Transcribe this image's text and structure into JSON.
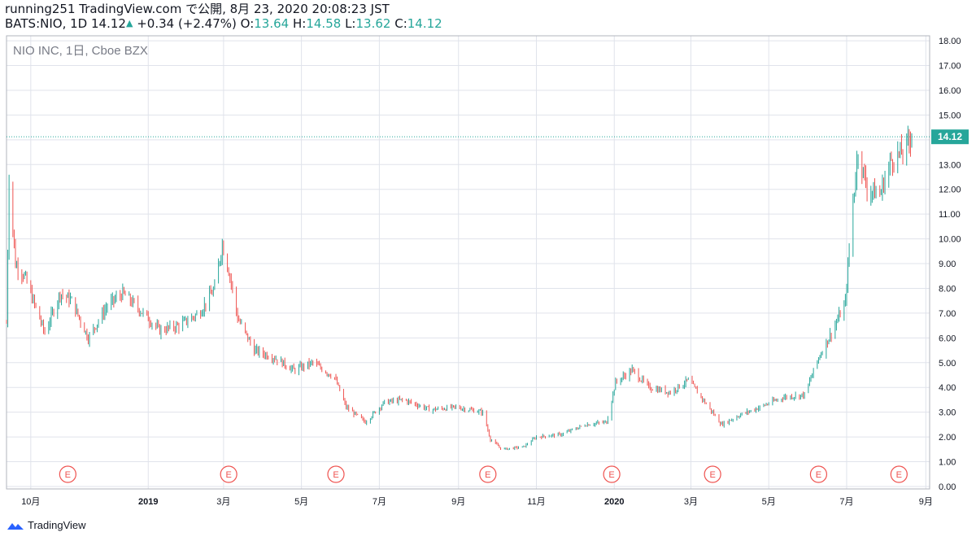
{
  "header": {
    "published": "running251 TradingView.com で公開, 8月 23, 2020 20:08:23 JST",
    "symbol": "BATS:NIO, 1D",
    "last": "14.12",
    "change": "+0.34 (+2.47%)",
    "o_label": "O:",
    "o_value": "13.64",
    "h_label": "H:",
    "h_value": "14.58",
    "l_label": "L:",
    "l_value": "13.62",
    "c_label": "C:",
    "c_value": "14.12"
  },
  "footer": {
    "brand": "TradingView"
  },
  "colors": {
    "up": "#26a69a",
    "down": "#ef5350",
    "grid": "#e0e3eb",
    "price_line": "#26a69a",
    "earnings": "#ef5350"
  },
  "chart_data": {
    "type": "candlestick",
    "title": "NIO INC, 1日, Cboe BZX",
    "ylim": [
      -0.1,
      18.2
    ],
    "y_ticks": [
      "0.00",
      "1.00",
      "2.00",
      "3.00",
      "4.00",
      "5.00",
      "6.00",
      "7.00",
      "8.00",
      "9.00",
      "10.00",
      "11.00",
      "12.00",
      "13.00",
      "14.00",
      "15.00",
      "16.00",
      "17.00",
      "18.00"
    ],
    "x_range": [
      "2018-09-12",
      "2020-09-04"
    ],
    "x_ticks": [
      {
        "date": "2018-10-01",
        "label": "10月",
        "bold": false
      },
      {
        "date": "2019-01-01",
        "label": "2019",
        "bold": true
      },
      {
        "date": "2019-03-01",
        "label": "3月",
        "bold": false
      },
      {
        "date": "2019-05-01",
        "label": "5月",
        "bold": false
      },
      {
        "date": "2019-07-01",
        "label": "7月",
        "bold": false
      },
      {
        "date": "2019-09-01",
        "label": "9月",
        "bold": false
      },
      {
        "date": "2019-11-01",
        "label": "11月",
        "bold": false
      },
      {
        "date": "2020-01-01",
        "label": "2020",
        "bold": true
      },
      {
        "date": "2020-03-01",
        "label": "3月",
        "bold": false
      },
      {
        "date": "2020-05-01",
        "label": "5月",
        "bold": false
      },
      {
        "date": "2020-07-01",
        "label": "7月",
        "bold": false
      },
      {
        "date": "2020-09-01",
        "label": "9月",
        "bold": false
      }
    ],
    "last_price": 14.12,
    "last_price_label": "14.12",
    "earnings_label": "E",
    "earnings_dates": [
      "2018-10-30",
      "2019-03-05",
      "2019-05-28",
      "2019-09-24",
      "2019-12-30",
      "2020-03-18",
      "2020-06-09",
      "2020-08-11"
    ],
    "closes_monthly": [
      {
        "date": "2018-09-12",
        "close": 6.6
      },
      {
        "date": "2018-09-14",
        "close": 12.5
      },
      {
        "date": "2018-09-19",
        "close": 9.0
      },
      {
        "date": "2018-09-26",
        "close": 8.5
      },
      {
        "date": "2018-10-05",
        "close": 7.2
      },
      {
        "date": "2018-10-12",
        "close": 6.2
      },
      {
        "date": "2018-10-24",
        "close": 7.8
      },
      {
        "date": "2018-11-02",
        "close": 7.5
      },
      {
        "date": "2018-11-15",
        "close": 6.0
      },
      {
        "date": "2018-11-30",
        "close": 7.3
      },
      {
        "date": "2018-12-12",
        "close": 7.8
      },
      {
        "date": "2018-12-28",
        "close": 7.0
      },
      {
        "date": "2019-01-10",
        "close": 6.3
      },
      {
        "date": "2019-01-25",
        "close": 6.5
      },
      {
        "date": "2019-02-10",
        "close": 7.0
      },
      {
        "date": "2019-02-22",
        "close": 8.0
      },
      {
        "date": "2019-02-28",
        "close": 9.8
      },
      {
        "date": "2019-03-06",
        "close": 8.5
      },
      {
        "date": "2019-03-12",
        "close": 6.8
      },
      {
        "date": "2019-03-25",
        "close": 5.5
      },
      {
        "date": "2019-04-10",
        "close": 5.2
      },
      {
        "date": "2019-04-25",
        "close": 4.7
      },
      {
        "date": "2019-05-10",
        "close": 5.0
      },
      {
        "date": "2019-05-27",
        "close": 4.4
      },
      {
        "date": "2019-06-05",
        "close": 3.2
      },
      {
        "date": "2019-06-20",
        "close": 2.6
      },
      {
        "date": "2019-07-05",
        "close": 3.4
      },
      {
        "date": "2019-07-20",
        "close": 3.5
      },
      {
        "date": "2019-08-10",
        "close": 3.1
      },
      {
        "date": "2019-08-30",
        "close": 3.2
      },
      {
        "date": "2019-09-20",
        "close": 3.0
      },
      {
        "date": "2019-09-26",
        "close": 1.9
      },
      {
        "date": "2019-10-05",
        "close": 1.5
      },
      {
        "date": "2019-10-22",
        "close": 1.6
      },
      {
        "date": "2019-11-01",
        "close": 2.0
      },
      {
        "date": "2019-11-20",
        "close": 2.1
      },
      {
        "date": "2019-12-10",
        "close": 2.5
      },
      {
        "date": "2019-12-26",
        "close": 2.6
      },
      {
        "date": "2020-01-02",
        "close": 4.2
      },
      {
        "date": "2020-01-15",
        "close": 4.7
      },
      {
        "date": "2020-01-28",
        "close": 4.0
      },
      {
        "date": "2020-02-14",
        "close": 3.8
      },
      {
        "date": "2020-02-28",
        "close": 4.3
      },
      {
        "date": "2020-03-12",
        "close": 3.4
      },
      {
        "date": "2020-03-25",
        "close": 2.5
      },
      {
        "date": "2020-04-09",
        "close": 2.9
      },
      {
        "date": "2020-04-24",
        "close": 3.2
      },
      {
        "date": "2020-05-12",
        "close": 3.6
      },
      {
        "date": "2020-05-29",
        "close": 3.7
      },
      {
        "date": "2020-06-09",
        "close": 5.2
      },
      {
        "date": "2020-06-19",
        "close": 6.2
      },
      {
        "date": "2020-06-30",
        "close": 7.4
      },
      {
        "date": "2020-07-02",
        "close": 8.9
      },
      {
        "date": "2020-07-06",
        "close": 11.5
      },
      {
        "date": "2020-07-10",
        "close": 13.6
      },
      {
        "date": "2020-07-17",
        "close": 12.0
      },
      {
        "date": "2020-07-27",
        "close": 11.8
      },
      {
        "date": "2020-08-05",
        "close": 13.2
      },
      {
        "date": "2020-08-14",
        "close": 13.5
      },
      {
        "date": "2020-08-21",
        "close": 14.12
      }
    ]
  }
}
